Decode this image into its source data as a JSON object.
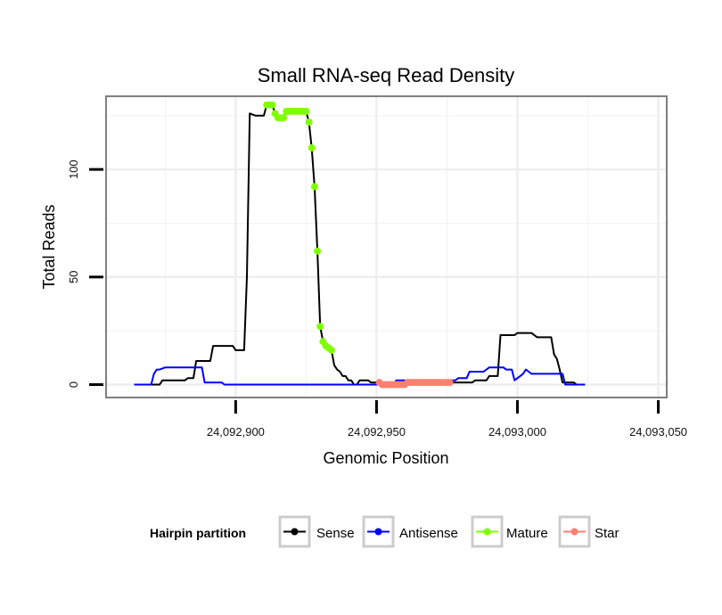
{
  "chart_data": {
    "type": "line",
    "title": "Small RNA-seq Read Density",
    "xlabel": "Genomic Position",
    "ylabel": "Total Reads",
    "xlim": [
      24092854,
      24093053
    ],
    "ylim": [
      -6,
      134
    ],
    "x_ticks": [
      24092900,
      24092950,
      24093000,
      24093050
    ],
    "x_tick_labels": [
      "24,092,900",
      "24,092,950",
      "24,093,000",
      "24,093,050"
    ],
    "y_ticks": [
      0,
      50,
      100
    ],
    "y_tick_labels": [
      "0",
      "50",
      "100"
    ],
    "grid": true,
    "legend": {
      "title": "Hairpin partition",
      "position": "bottom",
      "entries": [
        {
          "label": "Sense",
          "color": "#000000"
        },
        {
          "label": "Antisense",
          "color": "#0000ff"
        },
        {
          "label": "Mature",
          "color": "#7fff00"
        },
        {
          "label": "Star",
          "color": "#fa8072"
        }
      ]
    },
    "series": [
      {
        "name": "Sense",
        "color": "#000000",
        "points": [
          [
            24092864,
            0
          ],
          [
            24092873,
            0
          ],
          [
            24092874,
            2
          ],
          [
            24092882,
            2
          ],
          [
            24092883,
            3
          ],
          [
            24092885,
            3
          ],
          [
            24092886,
            11
          ],
          [
            24092891,
            11
          ],
          [
            24092892,
            18
          ],
          [
            24092899,
            18
          ],
          [
            24092900,
            16
          ],
          [
            24092903,
            16
          ],
          [
            24092904,
            50
          ],
          [
            24092905,
            126
          ],
          [
            24092907,
            125
          ],
          [
            24092909,
            125
          ],
          [
            24092910,
            125
          ],
          [
            24092911,
            130
          ],
          [
            24092913,
            130
          ],
          [
            24092914,
            126
          ],
          [
            24092916,
            124
          ],
          [
            24092917,
            124
          ],
          [
            24092918,
            127
          ],
          [
            24092925,
            127
          ],
          [
            24092926,
            122
          ],
          [
            24092927,
            110
          ],
          [
            24092928,
            92
          ],
          [
            24092929,
            62
          ],
          [
            24092930,
            27
          ],
          [
            24092931,
            20
          ],
          [
            24092932,
            18
          ],
          [
            24092933,
            17
          ],
          [
            24092934,
            16
          ],
          [
            24092935,
            9
          ],
          [
            24092936,
            7
          ],
          [
            24092937,
            6
          ],
          [
            24092938,
            4
          ],
          [
            24092939,
            4
          ],
          [
            24092940,
            2
          ],
          [
            24092941,
            2
          ],
          [
            24092942,
            0
          ],
          [
            24092943,
            0
          ],
          [
            24092944,
            2
          ],
          [
            24092947,
            2
          ],
          [
            24092948,
            1
          ],
          [
            24092980,
            1
          ],
          [
            24092983,
            1
          ],
          [
            24092984,
            1
          ],
          [
            24092985,
            2
          ],
          [
            24092989,
            2
          ],
          [
            24092990,
            4
          ],
          [
            24092993,
            4
          ],
          [
            24092994,
            23
          ],
          [
            24092999,
            23
          ],
          [
            24093000,
            24
          ],
          [
            24093005,
            24
          ],
          [
            24093006,
            23
          ],
          [
            24093007,
            22
          ],
          [
            24093012,
            22
          ],
          [
            24093013,
            14
          ],
          [
            24093014,
            12
          ],
          [
            24093015,
            7
          ],
          [
            24093016,
            1
          ],
          [
            24093020,
            1
          ],
          [
            24093021,
            0
          ],
          [
            24093024,
            0
          ]
        ]
      },
      {
        "name": "Antisense",
        "color": "#0000ff",
        "points": [
          [
            24092864,
            0
          ],
          [
            24092870,
            0
          ],
          [
            24092871,
            5
          ],
          [
            24092872,
            7
          ],
          [
            24092873,
            7
          ],
          [
            24092875,
            8
          ],
          [
            24092888,
            8
          ],
          [
            24092889,
            1
          ],
          [
            24092895,
            1
          ],
          [
            24092896,
            0
          ],
          [
            24092956,
            0
          ],
          [
            24092957,
            2
          ],
          [
            24092978,
            2
          ],
          [
            24092979,
            3
          ],
          [
            24092982,
            3
          ],
          [
            24092983,
            6
          ],
          [
            24092988,
            6
          ],
          [
            24092990,
            8
          ],
          [
            24092995,
            8
          ],
          [
            24092996,
            7
          ],
          [
            24092998,
            7
          ],
          [
            24092999,
            2
          ],
          [
            24093001,
            4
          ],
          [
            24093002,
            5
          ],
          [
            24093003,
            7
          ],
          [
            24093004,
            6
          ],
          [
            24093005,
            5
          ],
          [
            24093016,
            5
          ],
          [
            24093017,
            0
          ],
          [
            24093024,
            0
          ]
        ]
      },
      {
        "name": "Mature",
        "color": "#7fff00",
        "points": [
          [
            24092911,
            130
          ],
          [
            24092912,
            130
          ],
          [
            24092913,
            130
          ],
          [
            24092914,
            126
          ],
          [
            24092915,
            124
          ],
          [
            24092916,
            124
          ],
          [
            24092917,
            124
          ],
          [
            24092918,
            127
          ],
          [
            24092919,
            127
          ],
          [
            24092920,
            127
          ],
          [
            24092921,
            127
          ],
          [
            24092922,
            127
          ],
          [
            24092923,
            127
          ],
          [
            24092924,
            127
          ],
          [
            24092925,
            127
          ],
          [
            24092926,
            122
          ],
          [
            24092927,
            110
          ],
          [
            24092928,
            92
          ],
          [
            24092929,
            62
          ],
          [
            24092930,
            27
          ],
          [
            24092931,
            20
          ],
          [
            24092932,
            18
          ],
          [
            24092933,
            17
          ],
          [
            24092934,
            16
          ]
        ]
      },
      {
        "name": "Star",
        "color": "#fa8072",
        "points": [
          [
            24092951,
            1
          ],
          [
            24092952,
            0
          ],
          [
            24092953,
            0
          ],
          [
            24092954,
            0
          ],
          [
            24092955,
            0
          ],
          [
            24092956,
            0
          ],
          [
            24092957,
            0
          ],
          [
            24092958,
            0
          ],
          [
            24092959,
            0
          ],
          [
            24092960,
            0
          ],
          [
            24092961,
            1
          ],
          [
            24092962,
            1
          ],
          [
            24092963,
            1
          ],
          [
            24092964,
            1
          ],
          [
            24092965,
            1
          ],
          [
            24092966,
            1
          ],
          [
            24092967,
            1
          ],
          [
            24092968,
            1
          ],
          [
            24092969,
            1
          ],
          [
            24092970,
            1
          ],
          [
            24092971,
            1
          ],
          [
            24092972,
            1
          ],
          [
            24092973,
            1
          ],
          [
            24092974,
            1
          ],
          [
            24092975,
            1
          ],
          [
            24092976,
            1
          ]
        ]
      }
    ]
  }
}
